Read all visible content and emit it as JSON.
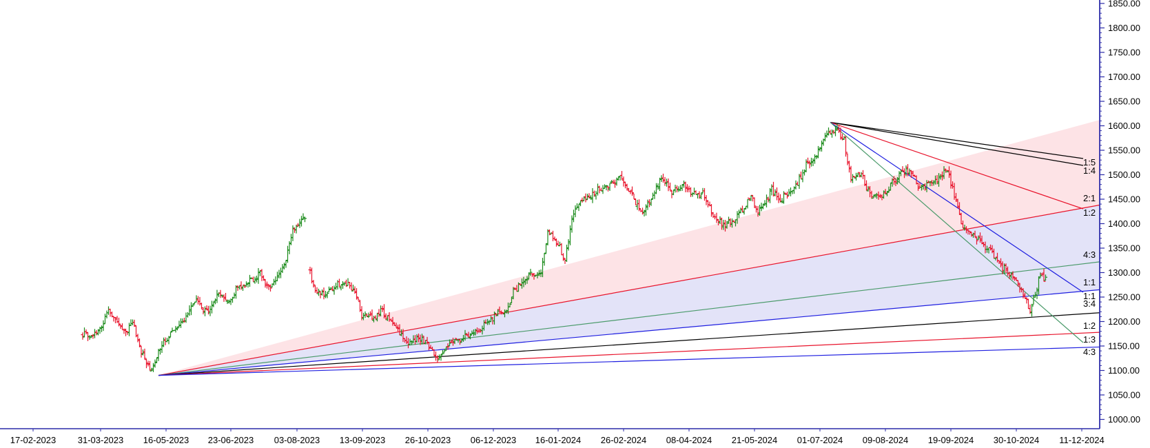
{
  "chart_data": {
    "type": "ohlc",
    "title": "",
    "xlabel": "",
    "ylabel": "",
    "x_ticks": [
      "17-02-2023",
      "31-03-2023",
      "16-05-2023",
      "23-06-2023",
      "03-08-2023",
      "13-09-2023",
      "26-10-2023",
      "06-12-2023",
      "16-01-2024",
      "26-02-2024",
      "08-04-2024",
      "21-05-2024",
      "01-07-2024",
      "09-08-2024",
      "19-09-2024",
      "30-10-2024",
      "11-12-2024"
    ],
    "y_ticks": [
      "1850.00",
      "1800.00",
      "1750.00",
      "1700.00",
      "1650.00",
      "1600.00",
      "1550.00",
      "1500.00",
      "1450.00",
      "1400.00",
      "1350.00",
      "1300.00",
      "1250.00",
      "1200.00",
      "1150.00",
      "1100.00",
      "1050.00",
      "1000.00"
    ],
    "ylim": [
      985,
      1860
    ],
    "up_color": "#1a8a1a",
    "down_color": "#e8132b",
    "grid": false,
    "price_path": [
      {
        "t": 0,
        "c": 1175
      },
      {
        "t": 5,
        "c": 1168
      },
      {
        "t": 10,
        "c": 1185
      },
      {
        "t": 15,
        "c": 1225
      },
      {
        "t": 20,
        "c": 1200
      },
      {
        "t": 25,
        "c": 1175
      },
      {
        "t": 29,
        "c": 1200
      },
      {
        "t": 33,
        "c": 1145
      },
      {
        "t": 37,
        "c": 1120
      },
      {
        "t": 40,
        "c": 1095
      },
      {
        "t": 44,
        "c": 1135
      },
      {
        "t": 48,
        "c": 1165
      },
      {
        "t": 54,
        "c": 1180
      },
      {
        "t": 60,
        "c": 1210
      },
      {
        "t": 66,
        "c": 1240
      },
      {
        "t": 72,
        "c": 1220
      },
      {
        "t": 78,
        "c": 1255
      },
      {
        "t": 84,
        "c": 1240
      },
      {
        "t": 90,
        "c": 1270
      },
      {
        "t": 96,
        "c": 1280
      },
      {
        "t": 103,
        "c": 1300
      },
      {
        "t": 108,
        "c": 1270
      },
      {
        "t": 114,
        "c": 1300
      },
      {
        "t": 118,
        "c": 1330
      },
      {
        "t": 122,
        "c": 1390
      },
      {
        "t": 126,
        "c": 1400
      },
      {
        "t": 130,
        "c": 1420
      },
      {
        "t": 131,
        "c": null
      },
      {
        "t": 132,
        "c": 1300
      },
      {
        "t": 136,
        "c": 1255
      },
      {
        "t": 142,
        "c": 1260
      },
      {
        "t": 148,
        "c": 1275
      },
      {
        "t": 152,
        "c": 1280
      },
      {
        "t": 158,
        "c": 1260
      },
      {
        "t": 162,
        "c": 1215
      },
      {
        "t": 168,
        "c": 1205
      },
      {
        "t": 174,
        "c": 1225
      },
      {
        "t": 178,
        "c": 1200
      },
      {
        "t": 182,
        "c": 1185
      },
      {
        "t": 186,
        "c": 1165
      },
      {
        "t": 190,
        "c": 1155
      },
      {
        "t": 196,
        "c": 1165
      },
      {
        "t": 202,
        "c": 1145
      },
      {
        "t": 206,
        "c": 1120
      },
      {
        "t": 212,
        "c": 1150
      },
      {
        "t": 218,
        "c": 1165
      },
      {
        "t": 224,
        "c": 1170
      },
      {
        "t": 230,
        "c": 1185
      },
      {
        "t": 236,
        "c": 1200
      },
      {
        "t": 242,
        "c": 1225
      },
      {
        "t": 246,
        "c": 1215
      },
      {
        "t": 250,
        "c": 1260
      },
      {
        "t": 256,
        "c": 1285
      },
      {
        "t": 262,
        "c": 1300
      },
      {
        "t": 266,
        "c": 1295
      },
      {
        "t": 270,
        "c": 1380
      },
      {
        "t": 276,
        "c": 1360
      },
      {
        "t": 280,
        "c": 1325
      },
      {
        "t": 284,
        "c": 1410
      },
      {
        "t": 288,
        "c": 1440
      },
      {
        "t": 294,
        "c": 1455
      },
      {
        "t": 300,
        "c": 1470
      },
      {
        "t": 306,
        "c": 1480
      },
      {
        "t": 312,
        "c": 1495
      },
      {
        "t": 318,
        "c": 1465
      },
      {
        "t": 324,
        "c": 1420
      },
      {
        "t": 330,
        "c": 1455
      },
      {
        "t": 336,
        "c": 1490
      },
      {
        "t": 342,
        "c": 1465
      },
      {
        "t": 348,
        "c": 1480
      },
      {
        "t": 354,
        "c": 1460
      },
      {
        "t": 360,
        "c": 1460
      },
      {
        "t": 366,
        "c": 1420
      },
      {
        "t": 372,
        "c": 1395
      },
      {
        "t": 378,
        "c": 1410
      },
      {
        "t": 384,
        "c": 1430
      },
      {
        "t": 388,
        "c": 1460
      },
      {
        "t": 392,
        "c": 1425
      },
      {
        "t": 396,
        "c": 1440
      },
      {
        "t": 400,
        "c": 1470
      },
      {
        "t": 404,
        "c": 1445
      },
      {
        "t": 408,
        "c": 1460
      },
      {
        "t": 414,
        "c": 1475
      },
      {
        "t": 420,
        "c": 1520
      },
      {
        "t": 426,
        "c": 1540
      },
      {
        "t": 432,
        "c": 1580
      },
      {
        "t": 438,
        "c": 1590
      },
      {
        "t": 442,
        "c": 1570
      },
      {
        "t": 446,
        "c": 1490
      },
      {
        "t": 452,
        "c": 1500
      },
      {
        "t": 456,
        "c": 1465
      },
      {
        "t": 462,
        "c": 1450
      },
      {
        "t": 468,
        "c": 1475
      },
      {
        "t": 474,
        "c": 1500
      },
      {
        "t": 478,
        "c": 1510
      },
      {
        "t": 482,
        "c": 1500
      },
      {
        "t": 486,
        "c": 1470
      },
      {
        "t": 492,
        "c": 1480
      },
      {
        "t": 498,
        "c": 1495
      },
      {
        "t": 502,
        "c": 1510
      },
      {
        "t": 506,
        "c": 1460
      },
      {
        "t": 510,
        "c": 1400
      },
      {
        "t": 516,
        "c": 1380
      },
      {
        "t": 522,
        "c": 1360
      },
      {
        "t": 528,
        "c": 1340
      },
      {
        "t": 534,
        "c": 1310
      },
      {
        "t": 538,
        "c": 1300
      },
      {
        "t": 542,
        "c": 1280
      },
      {
        "t": 546,
        "c": 1255
      },
      {
        "t": 550,
        "c": 1225
      },
      {
        "t": 554,
        "c": 1270
      },
      {
        "t": 556,
        "c": 1295
      },
      {
        "t": 560,
        "c": 1280
      }
    ],
    "gann_fans": [
      {
        "anchor": "low",
        "origin": {
          "t": 44,
          "price": 1090
        },
        "labels": [
          "1:5",
          "1:4",
          "2:1",
          "1:2",
          "4:3",
          "1:1",
          "1:1",
          "3:4",
          "1:2",
          "1:3",
          "4:3"
        ]
      },
      {
        "anchor": "high",
        "origin": {
          "t": 434,
          "price": 1607
        }
      }
    ]
  }
}
